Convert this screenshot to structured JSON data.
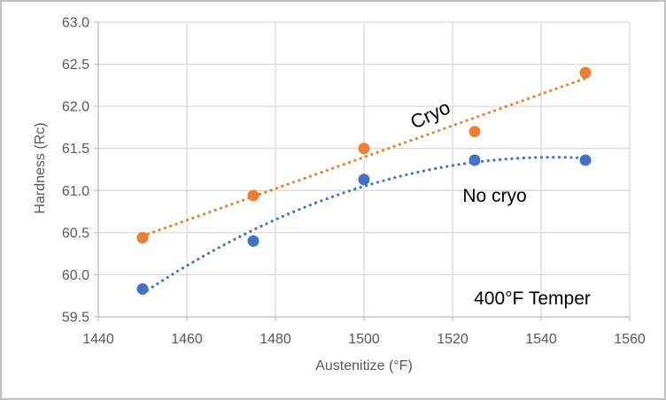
{
  "chart_data": {
    "type": "scatter",
    "title": "",
    "xlabel": "Austenitize (°F)",
    "ylabel": "Hardness (Rc)",
    "xlim": [
      1440,
      1560
    ],
    "ylim": [
      59.5,
      63.0
    ],
    "xticks": [
      1440,
      1460,
      1480,
      1500,
      1520,
      1540,
      1560
    ],
    "yticks": [
      59.5,
      60.0,
      60.5,
      61.0,
      61.5,
      62.0,
      62.5,
      63.0
    ],
    "grid": true,
    "legend_position": "none",
    "series": [
      {
        "name": "Cryo",
        "color": "#ED7D31",
        "trendline": "linear",
        "x": [
          1450,
          1475,
          1500,
          1525,
          1550
        ],
        "y": [
          60.44,
          60.94,
          61.5,
          61.7,
          62.4
        ]
      },
      {
        "name": "No cryo",
        "color": "#4472C4",
        "trendline": "quadratic",
        "x": [
          1450,
          1475,
          1500,
          1525,
          1550
        ],
        "y": [
          59.83,
          60.4,
          61.13,
          61.36,
          61.36
        ]
      }
    ],
    "annotations": [
      {
        "text": "Cryo",
        "x": 1515.0,
        "y": 61.9,
        "rotation": -25
      },
      {
        "text": "No cryo",
        "x": 1529.5,
        "y": 60.93,
        "rotation": 0
      },
      {
        "text": "400°F Temper",
        "x": 1538.0,
        "y": 59.71,
        "rotation": 0
      }
    ],
    "colors": {
      "grid": "#d9d9d9",
      "axis": "#bfbfbf",
      "tick_text": "#595959",
      "annotation_text": "#000000",
      "background": "#ffffff",
      "border": "#bfbfbf"
    }
  }
}
